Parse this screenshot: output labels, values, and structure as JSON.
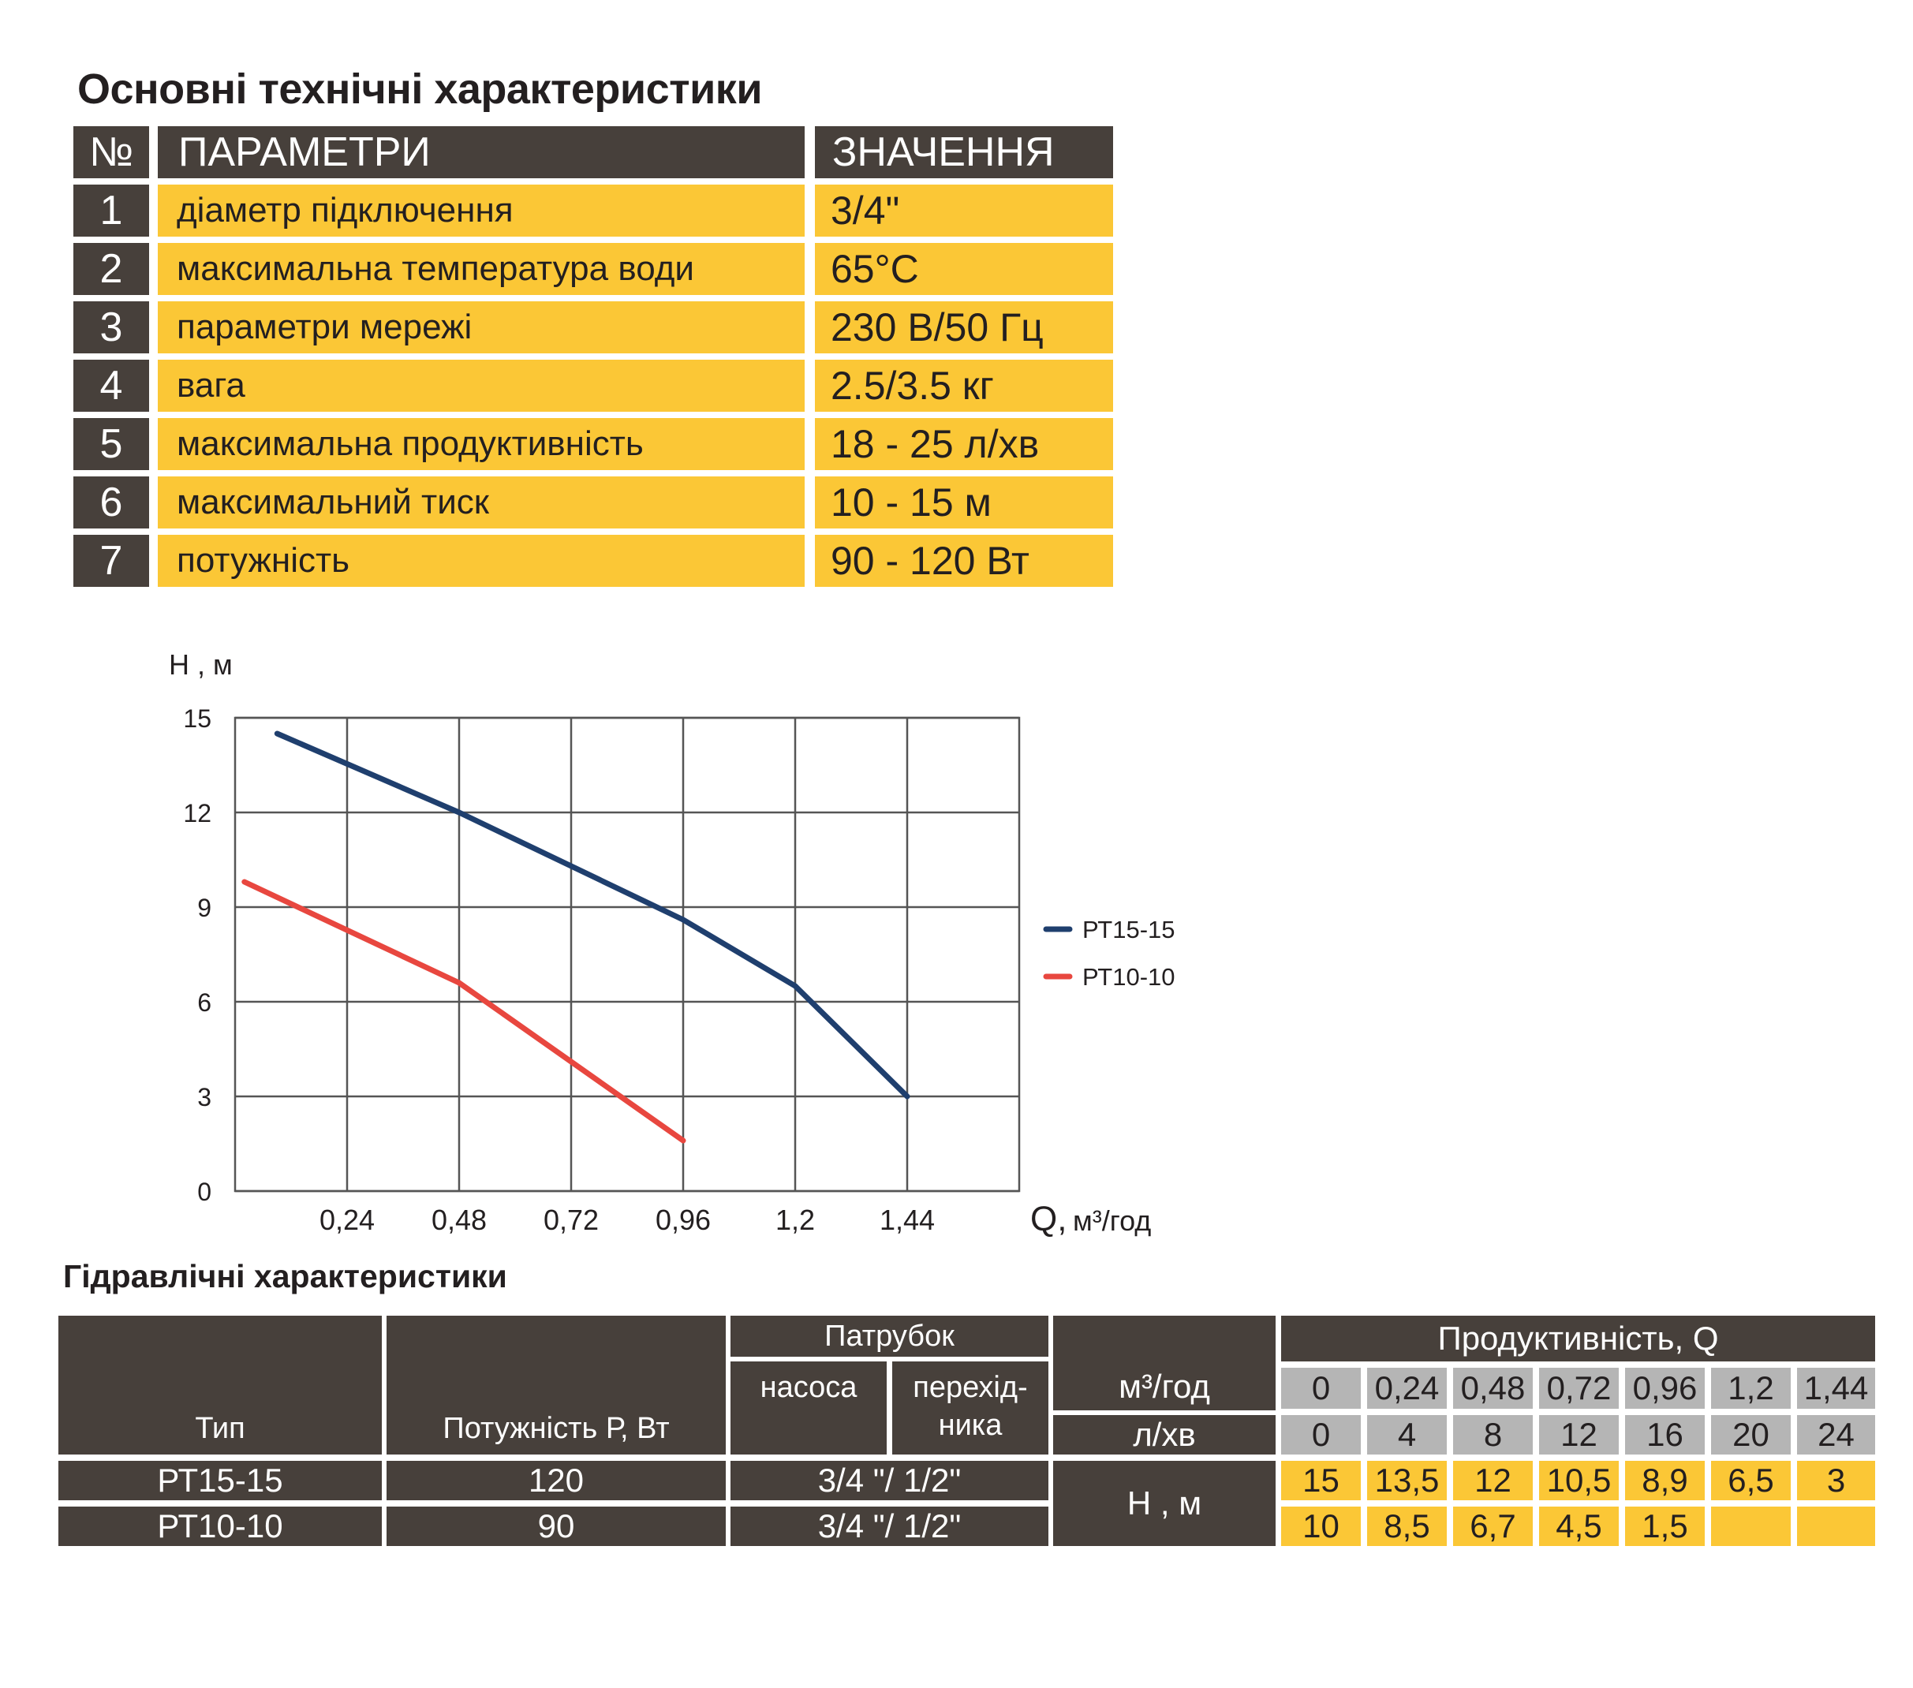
{
  "specs": {
    "title": "Основні технічні характеристики",
    "header": {
      "no": "№",
      "param": "ПАРАМЕТРИ",
      "value": "ЗНАЧЕННЯ"
    },
    "rows": [
      {
        "no": "1",
        "param": "діаметр підключення",
        "value": "3/4\""
      },
      {
        "no": "2",
        "param": "максимальна температура води",
        "value": "65°C"
      },
      {
        "no": "3",
        "param": "параметри мережі",
        "value": "230 В/50 Гц"
      },
      {
        "no": "4",
        "param": "вага",
        "value": "2.5/3.5 кг"
      },
      {
        "no": "5",
        "param": "максимальна продуктивність",
        "value": "18 - 25 л/хв"
      },
      {
        "no": "6",
        "param": "максимальний тиск",
        "value": "10 - 15 м"
      },
      {
        "no": "7",
        "param": "потужність",
        "value": "90 - 120 Вт"
      }
    ]
  },
  "chart_data": {
    "type": "line",
    "ylabel": "Н , м",
    "xlabel_main": "Q,",
    "xlabel_unit": "м³/год",
    "ylim": [
      0,
      15
    ],
    "xlim": [
      0,
      1.68
    ],
    "yticks": [
      "0",
      "3",
      "6",
      "9",
      "12",
      "15"
    ],
    "ytick_values": [
      0,
      3,
      6,
      9,
      12,
      15
    ],
    "xticks": [
      "0,24",
      "0,48",
      "0,72",
      "0,96",
      "1,2",
      "1,44"
    ],
    "xtick_values": [
      0.24,
      0.48,
      0.72,
      0.96,
      1.2,
      1.44
    ],
    "grid": true,
    "legend_position": "right",
    "series": [
      {
        "name": "РТ15-15",
        "color": "#1f3f6e",
        "x": [
          0.09,
          0.48,
          0.96,
          1.2,
          1.44
        ],
        "y": [
          14.5,
          12,
          8.6,
          6.5,
          3
        ]
      },
      {
        "name": "РТ10-10",
        "color": "#e8473f",
        "x": [
          0.02,
          0.48,
          0.96
        ],
        "y": [
          9.8,
          6.6,
          1.6
        ]
      }
    ]
  },
  "hydraulic": {
    "title": "Гідравлічні характеристики",
    "headers": {
      "type": "Тип",
      "power": "Потужність Р, Вт",
      "patrubok": "Патрубок",
      "nasosa": "насоса",
      "perekhidnyka_1": "перехід-",
      "perekhidnyka_2": "ника",
      "productivity": "Продуктивність, Q",
      "m3": "м³/год",
      "lmin": "л/хв",
      "head": "Н , м"
    },
    "q_m3": [
      "0",
      "0,24",
      "0,48",
      "0,72",
      "0,96",
      "1,2",
      "1,44"
    ],
    "q_lmin": [
      "0",
      "4",
      "8",
      "12",
      "16",
      "20",
      "24"
    ],
    "rows": [
      {
        "type": "РТ15-15",
        "power": "120",
        "patrubok": "3/4 \"/ 1/2\"",
        "h": [
          "15",
          "13,5",
          "12",
          "10,5",
          "8,9",
          "6,5",
          "3"
        ]
      },
      {
        "type": "РТ10-10",
        "power": "90",
        "patrubok": "3/4 \"/ 1/2\"",
        "h": [
          "10",
          "8,5",
          "6,7",
          "4,5",
          "1,5",
          "",
          ""
        ]
      }
    ]
  }
}
